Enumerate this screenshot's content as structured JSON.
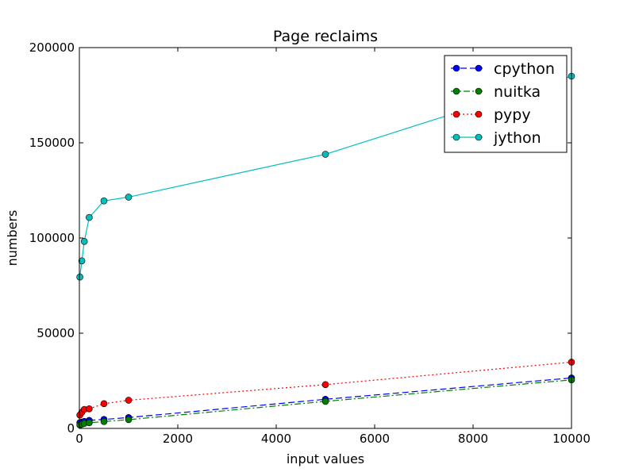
{
  "chart_data": {
    "type": "line",
    "title": "Page reclaims",
    "xlabel": "input values",
    "ylabel": "numbers",
    "xlim": [
      0,
      10000
    ],
    "ylim": [
      0,
      200000
    ],
    "xticks": [
      0,
      2000,
      4000,
      6000,
      8000,
      10000
    ],
    "yticks": [
      0,
      50000,
      100000,
      150000,
      200000
    ],
    "grid": false,
    "legend_position": "top-right",
    "x": [
      10,
      50,
      100,
      200,
      500,
      1000,
      5000,
      10000
    ],
    "series": [
      {
        "name": "cpython",
        "color": "#0000ff",
        "linestyle": "dashed",
        "values": [
          3000,
          3300,
          3700,
          4200,
          4700,
          5700,
          15300,
          26500
        ]
      },
      {
        "name": "nuitka",
        "color": "#008000",
        "linestyle": "dashdot",
        "values": [
          1800,
          2200,
          2600,
          3000,
          3600,
          4600,
          14200,
          25500
        ]
      },
      {
        "name": "pypy",
        "color": "#ff0000",
        "linestyle": "dotted",
        "values": [
          7000,
          8500,
          10000,
          10300,
          13000,
          14800,
          23000,
          34800
        ]
      },
      {
        "name": "jython",
        "color": "#00bfbf",
        "linestyle": "solid",
        "values": [
          79500,
          88000,
          98200,
          110800,
          119500,
          121500,
          144000,
          185000
        ]
      }
    ]
  }
}
